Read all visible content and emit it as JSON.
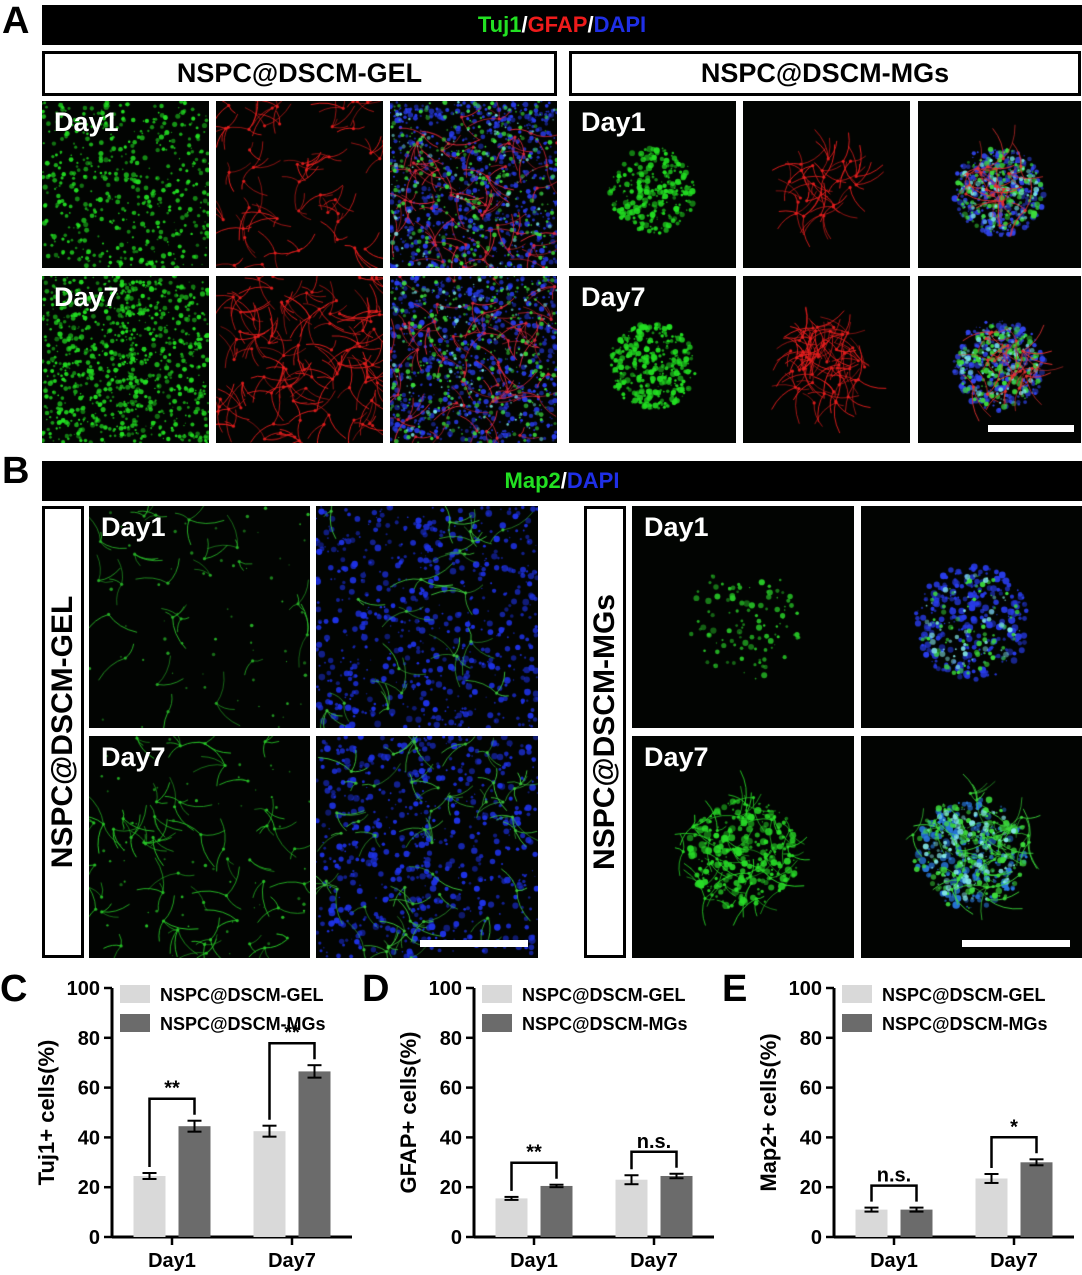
{
  "panels": {
    "a": {
      "letter": "A",
      "stain": {
        "p1": "Tuj1",
        "s1": "/",
        "p2": "GFAP",
        "s2": "/",
        "p3": "DAPI"
      },
      "group_gel": "NSPC@DSCM-GEL",
      "group_mgs": "NSPC@DSCM-MGs",
      "day1": "Day1",
      "day7": "Day7"
    },
    "b": {
      "letter": "B",
      "stain": {
        "p1": "Map2",
        "s1": "/",
        "p2": "DAPI"
      },
      "group_gel": "NSPC@DSCM-GEL",
      "group_mgs": "NSPC@DSCM-MGs",
      "day1": "Day1",
      "day7": "Day7"
    }
  },
  "colors": {
    "tuj1": "#22e022",
    "gfap": "#ee1b1b",
    "dapi": "#1f2fe6",
    "gel_bar": "#d9d9d9",
    "mgs_bar": "#6b6b6b"
  },
  "chart_data": [
    {
      "panel": "C",
      "type": "bar",
      "categories": [
        "Day1",
        "Day7"
      ],
      "series": [
        {
          "name": "NSPC@DSCM-GEL",
          "values": [
            24.5,
            42.5
          ],
          "errors": [
            1.2,
            2.2
          ]
        },
        {
          "name": "NSPC@DSCM-MGs",
          "values": [
            44.5,
            66.5
          ],
          "errors": [
            2.2,
            2.5
          ]
        }
      ],
      "ylabel": "Tuj1+ cells(%)",
      "ylim": [
        0,
        100
      ],
      "yticks": [
        0,
        20,
        40,
        60,
        80,
        100
      ],
      "legend": "top",
      "significance": [
        "**",
        "**"
      ]
    },
    {
      "panel": "D",
      "type": "bar",
      "categories": [
        "Day1",
        "Day7"
      ],
      "series": [
        {
          "name": "NSPC@DSCM-GEL",
          "values": [
            15.5,
            23.0
          ],
          "errors": [
            0.6,
            1.8
          ]
        },
        {
          "name": "NSPC@DSCM-MGs",
          "values": [
            20.5,
            24.5
          ],
          "errors": [
            0.5,
            0.9
          ]
        }
      ],
      "ylabel": "GFAP+ cells(%)",
      "ylim": [
        0,
        100
      ],
      "yticks": [
        0,
        20,
        40,
        60,
        80,
        100
      ],
      "legend": "top",
      "significance": [
        "**",
        "n.s."
      ]
    },
    {
      "panel": "E",
      "type": "bar",
      "categories": [
        "Day1",
        "Day7"
      ],
      "series": [
        {
          "name": "NSPC@DSCM-GEL",
          "values": [
            11.0,
            23.5
          ],
          "errors": [
            0.8,
            1.8
          ]
        },
        {
          "name": "NSPC@DSCM-MGs",
          "values": [
            11.0,
            30.0
          ],
          "errors": [
            0.8,
            1.2
          ]
        }
      ],
      "ylabel": "Map2+ cells(%)",
      "ylim": [
        0,
        100
      ],
      "yticks": [
        0,
        20,
        40,
        60,
        80,
        100
      ],
      "legend": "top",
      "significance": [
        "n.s.",
        "*"
      ]
    }
  ]
}
